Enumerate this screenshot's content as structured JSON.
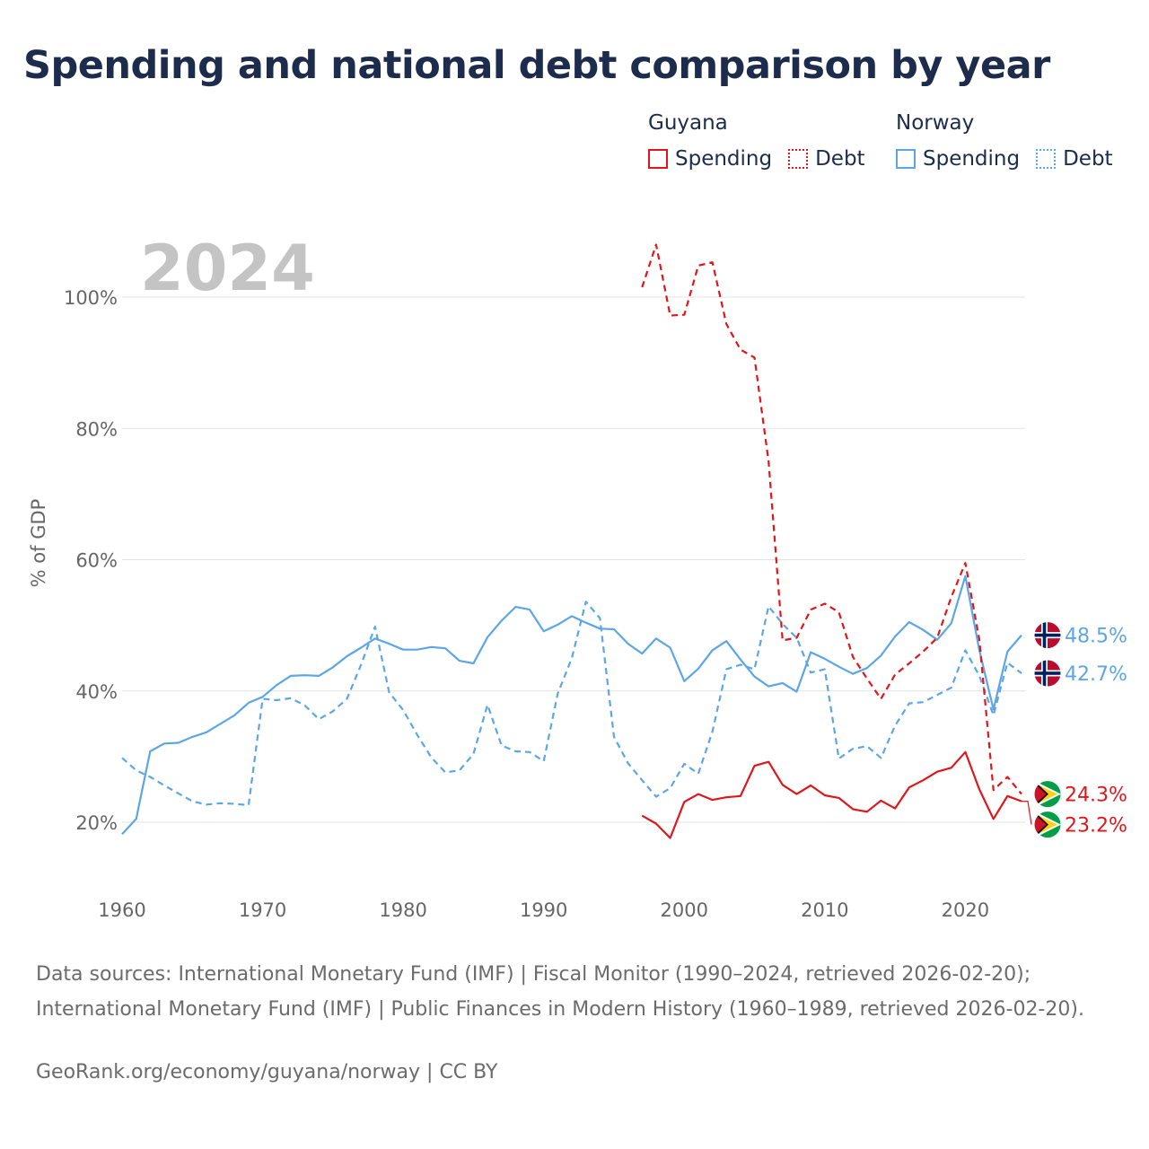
{
  "title": "Spending and national debt comparison by year",
  "legend": {
    "groups": [
      {
        "name": "Guyana",
        "items": [
          {
            "label": "Spending",
            "style": "solid",
            "color": "#e0161b"
          },
          {
            "label": "Debt",
            "style": "dotted",
            "color": "#e0161b"
          }
        ]
      },
      {
        "name": "Norway",
        "items": [
          {
            "label": "Spending",
            "style": "solid",
            "color": "#5da6e6"
          },
          {
            "label": "Debt",
            "style": "dotted",
            "color": "#5da6e6"
          }
        ]
      }
    ]
  },
  "colors": {
    "guyana": "#e0161b",
    "norway": "#5da6e6"
  },
  "chart_data": {
    "type": "line",
    "title": "Spending and national debt comparison by year",
    "current_year": "2024",
    "ylabel": "% of GDP",
    "xlabel": "",
    "xlim": [
      1960,
      2024
    ],
    "ylim": [
      10,
      108
    ],
    "x_ticks": [
      1960,
      1970,
      1980,
      1990,
      2000,
      2010,
      2020
    ],
    "y_ticks": [
      {
        "value": 20,
        "label": "20%"
      },
      {
        "value": 40,
        "label": "40%"
      },
      {
        "value": 60,
        "label": "60%"
      },
      {
        "value": 80,
        "label": "80%"
      },
      {
        "value": 100,
        "label": "100%"
      }
    ],
    "grid": true,
    "series": [
      {
        "name": "Norway Spending",
        "country": "Norway",
        "metric": "Spending",
        "color": "#5da6e6",
        "dash": false,
        "end_label": "48.5%",
        "end_value": 48.5,
        "x": [
          1960,
          1961,
          1962,
          1963,
          1964,
          1965,
          1966,
          1967,
          1968,
          1969,
          1970,
          1971,
          1972,
          1973,
          1974,
          1975,
          1976,
          1977,
          1978,
          1979,
          1980,
          1981,
          1982,
          1983,
          1984,
          1985,
          1986,
          1987,
          1988,
          1989,
          1990,
          1991,
          1992,
          1993,
          1994,
          1995,
          1996,
          1997,
          1998,
          1999,
          2000,
          2001,
          2002,
          2003,
          2004,
          2005,
          2006,
          2007,
          2008,
          2009,
          2010,
          2011,
          2012,
          2013,
          2014,
          2015,
          2016,
          2017,
          2018,
          2019,
          2020,
          2021,
          2022,
          2023,
          2024
        ],
        "y": [
          18.2,
          20.5,
          30.8,
          32.0,
          32.1,
          33.0,
          33.7,
          35.0,
          36.3,
          38.2,
          39.1,
          40.9,
          42.3,
          42.4,
          42.3,
          43.6,
          45.3,
          46.6,
          48.0,
          47.2,
          46.3,
          46.3,
          46.7,
          46.5,
          44.6,
          44.2,
          48.2,
          50.7,
          52.8,
          52.4,
          49.1,
          50.1,
          51.4,
          50.4,
          49.5,
          49.4,
          47.2,
          45.7,
          48.0,
          46.6,
          41.5,
          43.4,
          46.2,
          47.6,
          44.8,
          42.2,
          40.7,
          41.2,
          39.9,
          45.9,
          44.9,
          43.7,
          42.6,
          43.5,
          45.4,
          48.3,
          50.5,
          49.3,
          47.8,
          50.3,
          57.5,
          46.2,
          37.2,
          46.0,
          48.5
        ]
      },
      {
        "name": "Norway Debt",
        "country": "Norway",
        "metric": "Debt",
        "color": "#5da6e6",
        "dash": true,
        "end_label": "42.7%",
        "end_value": 42.7,
        "x": [
          1960,
          1961,
          1962,
          1963,
          1964,
          1965,
          1966,
          1967,
          1968,
          1969,
          1970,
          1971,
          1972,
          1973,
          1974,
          1975,
          1976,
          1977,
          1978,
          1979,
          1980,
          1981,
          1982,
          1983,
          1984,
          1985,
          1986,
          1987,
          1988,
          1989,
          1990,
          1991,
          1992,
          1993,
          1994,
          1995,
          1996,
          1997,
          1998,
          1999,
          2000,
          2001,
          2002,
          2003,
          2004,
          2005,
          2006,
          2007,
          2008,
          2009,
          2010,
          2011,
          2012,
          2013,
          2014,
          2015,
          2016,
          2017,
          2018,
          2019,
          2020,
          2021,
          2022,
          2023,
          2024
        ],
        "y": [
          29.8,
          27.9,
          26.9,
          25.6,
          24.4,
          23.2,
          22.7,
          22.9,
          22.8,
          22.6,
          38.8,
          38.6,
          38.9,
          37.8,
          35.7,
          36.9,
          38.8,
          44.0,
          49.8,
          39.8,
          37.1,
          33.3,
          29.9,
          27.6,
          27.9,
          30.4,
          37.9,
          31.7,
          30.8,
          30.7,
          29.3,
          39.6,
          45.0,
          53.6,
          51.1,
          33.0,
          29.0,
          26.4,
          23.9,
          25.2,
          28.9,
          27.4,
          33.8,
          43.3,
          44.0,
          43.3,
          52.9,
          50.2,
          48.1,
          42.8,
          43.3,
          29.7,
          31.2,
          31.6,
          29.8,
          34.7,
          38.1,
          38.3,
          39.4,
          40.5,
          46.2,
          42.3,
          36.3,
          44.3,
          42.7
        ]
      },
      {
        "name": "Guyana Spending",
        "country": "Guyana",
        "metric": "Spending",
        "color": "#e0161b",
        "dash": false,
        "end_label": "23.2%",
        "end_value": 23.2,
        "x": [
          1997,
          1998,
          1999,
          2000,
          2001,
          2002,
          2003,
          2004,
          2005,
          2006,
          2007,
          2008,
          2009,
          2010,
          2011,
          2012,
          2013,
          2014,
          2015,
          2016,
          2017,
          2018,
          2019,
          2020,
          2021,
          2022,
          2023,
          2024
        ],
        "y": [
          21.0,
          19.8,
          17.6,
          23.1,
          24.3,
          23.4,
          23.8,
          24.0,
          28.6,
          29.2,
          25.7,
          24.3,
          25.6,
          24.1,
          23.7,
          22.0,
          21.6,
          23.3,
          22.1,
          25.3,
          26.4,
          27.7,
          28.3,
          30.7,
          25.0,
          20.5,
          24.0,
          23.2
        ]
      },
      {
        "name": "Guyana Debt",
        "country": "Guyana",
        "metric": "Debt",
        "color": "#e0161b",
        "dash": true,
        "end_label": "24.3%",
        "end_value": 24.3,
        "x": [
          1997,
          1998,
          1999,
          2000,
          2001,
          2002,
          2003,
          2004,
          2005,
          2006,
          2007,
          2008,
          2009,
          2010,
          2011,
          2012,
          2013,
          2014,
          2015,
          2016,
          2017,
          2018,
          2019,
          2020,
          2021,
          2022,
          2023,
          2024
        ],
        "y": [
          101.5,
          108.0,
          97.2,
          97.3,
          104.8,
          105.3,
          95.9,
          92.0,
          90.8,
          75.0,
          47.7,
          48.1,
          52.4,
          53.3,
          52.0,
          45.2,
          41.9,
          38.8,
          42.5,
          44.2,
          46.0,
          48.1,
          54.3,
          59.5,
          47.8,
          24.9,
          26.9,
          24.3
        ]
      }
    ]
  },
  "sources": "Data sources: International Monetary Fund (IMF) | Fiscal Monitor (1990–2024, retrieved 2026-02-20); International Monetary Fund (IMF) | Public Finances in Modern History (1960–1989, retrieved 2026-02-20).",
  "credit": "GeoRank.org/economy/guyana/norway | CC BY"
}
